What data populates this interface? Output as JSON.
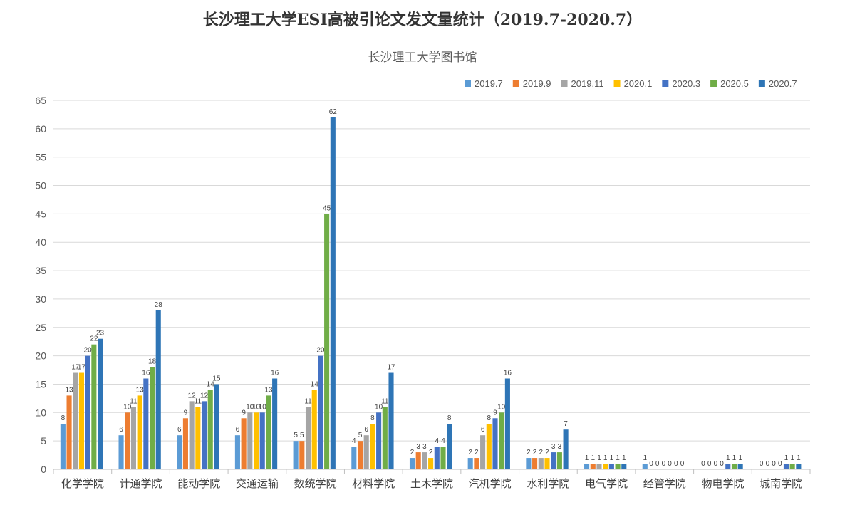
{
  "chart_data": {
    "type": "bar",
    "title": "长沙理工大学ESI高被引论文发文量统计（2019.7-2020.7）",
    "subtitle": "长沙理工大学图书馆",
    "xlabel": "",
    "ylabel": "",
    "ylim": [
      0,
      65
    ],
    "yticks": [
      0,
      5,
      10,
      15,
      20,
      25,
      30,
      35,
      40,
      45,
      50,
      55,
      60,
      65
    ],
    "grid": true,
    "legend_position": "top-right",
    "categories": [
      "化学学院",
      "计通学院",
      "能动学院",
      "交通运输",
      "数统学院",
      "材料学院",
      "土木学院",
      "汽机学院",
      "水利学院",
      "电气学院",
      "经管学院",
      "物电学院",
      "城南学院"
    ],
    "series": [
      {
        "name": "2019.7",
        "color": "#5B9BD5",
        "values": [
          8,
          6,
          6,
          6,
          5,
          4,
          2,
          2,
          2,
          1,
          1,
          0,
          0
        ]
      },
      {
        "name": "2019.9",
        "color": "#ED7D31",
        "values": [
          13,
          10,
          9,
          9,
          5,
          5,
          3,
          2,
          2,
          1,
          0,
          0,
          0
        ]
      },
      {
        "name": "2019.11",
        "color": "#A5A5A5",
        "values": [
          17,
          11,
          12,
          10,
          11,
          6,
          3,
          6,
          2,
          1,
          0,
          0,
          0
        ]
      },
      {
        "name": "2020.1",
        "color": "#FFC000",
        "values": [
          17,
          13,
          11,
          10,
          14,
          8,
          2,
          8,
          2,
          1,
          0,
          0,
          0
        ]
      },
      {
        "name": "2020.3",
        "color": "#4472C4",
        "values": [
          20,
          16,
          12,
          10,
          20,
          10,
          4,
          9,
          3,
          1,
          0,
          1,
          1
        ]
      },
      {
        "name": "2020.5",
        "color": "#70AD47",
        "values": [
          22,
          18,
          14,
          13,
          45,
          11,
          4,
          10,
          3,
          1,
          0,
          1,
          1
        ]
      },
      {
        "name": "2020.7",
        "color": "#2E75B6",
        "values": [
          23,
          28,
          15,
          16,
          62,
          17,
          8,
          16,
          7,
          1,
          0,
          1,
          1
        ]
      }
    ]
  }
}
